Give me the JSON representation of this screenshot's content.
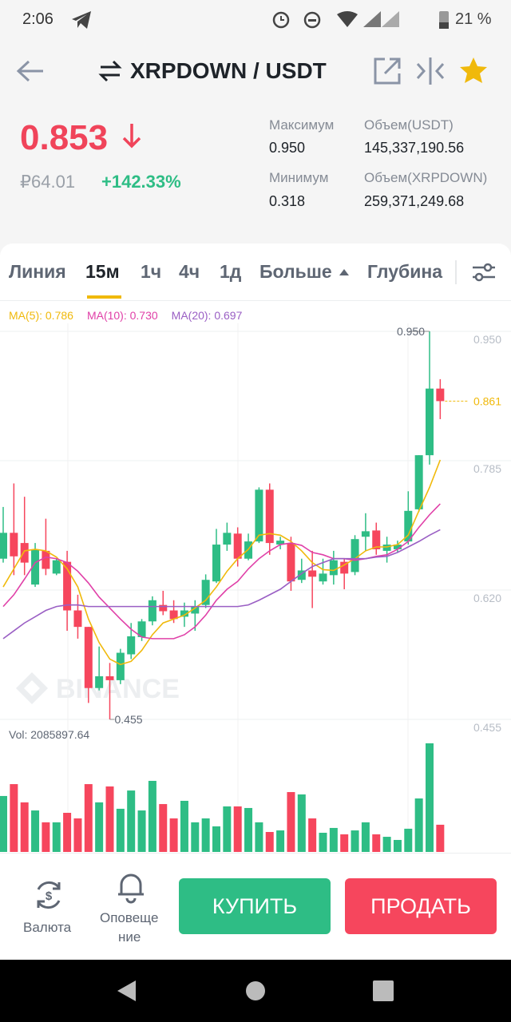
{
  "status_bar": {
    "time": "2:06",
    "battery": "21 %"
  },
  "header": {
    "pair": "XRPDOWN / USDT"
  },
  "ticker": {
    "price": "0.853",
    "fiat": "₽64.01",
    "change": "+142.33%",
    "stats": [
      {
        "label": "Максимум",
        "value": "0.950"
      },
      {
        "label": "Объем(USDT)",
        "value": "145,337,190.56"
      },
      {
        "label": "Минимум",
        "value": "0.318"
      },
      {
        "label": "Объем(XRPDOWN)",
        "value": "259,371,249.68"
      }
    ]
  },
  "tabs": [
    "Линия",
    "15м",
    "1ч",
    "4ч",
    "1д",
    "Больше",
    "Глубина"
  ],
  "active_tab": 1,
  "chart_data": {
    "type": "candlestick",
    "watermark": "BINANCE",
    "up_color": "#2ebd85",
    "down_color": "#f6465d",
    "ylim": [
      0.455,
      0.95
    ],
    "yticks": [
      {
        "value": 0.95,
        "label": "0.950"
      },
      0.785,
      {
        "value": 0.62,
        "label": "0.620"
      },
      {
        "value": 0.455,
        "label": "0.455"
      }
    ],
    "open": [
      0.66,
      0.693,
      0.68,
      0.627,
      0.67,
      0.641,
      0.656,
      0.594,
      0.573,
      0.495,
      0.51,
      0.505,
      0.538,
      0.56,
      0.58,
      0.601,
      0.594,
      0.586,
      0.59,
      0.601,
      0.631,
      0.678,
      0.692,
      0.66,
      0.682,
      0.748,
      0.678,
      0.68,
      0.633,
      0.645,
      0.631,
      0.639,
      0.656,
      0.643,
      0.688,
      0.696,
      0.67,
      0.672,
      0.682,
      0.723,
      0.792,
      0.877
    ],
    "high": [
      0.726,
      0.756,
      0.739,
      0.68,
      0.711,
      0.66,
      0.67,
      0.614,
      0.573,
      0.548,
      0.527,
      0.545,
      0.578,
      0.583,
      0.612,
      0.619,
      0.607,
      0.604,
      0.607,
      0.64,
      0.698,
      0.706,
      0.7,
      0.692,
      0.751,
      0.756,
      0.688,
      0.688,
      0.66,
      0.67,
      0.66,
      0.67,
      0.66,
      0.69,
      0.718,
      0.706,
      0.688,
      0.683,
      0.746,
      0.792,
      0.95,
      0.889
    ],
    "low": [
      0.655,
      0.639,
      0.639,
      0.624,
      0.639,
      0.639,
      0.568,
      0.558,
      0.476,
      0.492,
      0.455,
      0.5,
      0.532,
      0.555,
      0.575,
      0.588,
      0.578,
      0.573,
      0.568,
      0.597,
      0.629,
      0.67,
      0.65,
      0.658,
      0.68,
      0.665,
      0.672,
      0.619,
      0.629,
      0.597,
      0.627,
      0.627,
      0.621,
      0.639,
      0.67,
      0.665,
      0.655,
      0.668,
      0.678,
      0.72,
      0.78,
      0.838
    ],
    "close": [
      0.693,
      0.663,
      0.655,
      0.672,
      0.647,
      0.658,
      0.594,
      0.573,
      0.495,
      0.51,
      0.505,
      0.54,
      0.561,
      0.58,
      0.607,
      0.593,
      0.583,
      0.594,
      0.599,
      0.633,
      0.678,
      0.693,
      0.66,
      0.682,
      0.748,
      0.68,
      0.683,
      0.631,
      0.645,
      0.637,
      0.641,
      0.658,
      0.641,
      0.685,
      0.695,
      0.672,
      0.678,
      0.678,
      0.721,
      0.792,
      0.877,
      0.861
    ],
    "series": [
      {
        "name": "MA(5): 0.786",
        "color": "#f0b90b",
        "values": [
          0.624,
          0.647,
          0.67,
          0.672,
          0.67,
          0.662,
          0.647,
          0.624,
          0.583,
          0.553,
          0.532,
          0.525,
          0.529,
          0.543,
          0.563,
          0.578,
          0.583,
          0.588,
          0.597,
          0.607,
          0.624,
          0.644,
          0.66,
          0.672,
          0.69,
          0.692,
          0.69,
          0.682,
          0.67,
          0.655,
          0.646,
          0.645,
          0.652,
          0.66,
          0.67,
          0.675,
          0.675,
          0.678,
          0.69,
          0.721,
          0.751,
          0.786
        ]
      },
      {
        "name": "MA(10): 0.730",
        "color": "#e040a8",
        "values": [
          0.599,
          0.614,
          0.634,
          0.655,
          0.662,
          0.66,
          0.655,
          0.644,
          0.629,
          0.611,
          0.597,
          0.583,
          0.57,
          0.56,
          0.558,
          0.558,
          0.558,
          0.563,
          0.573,
          0.588,
          0.607,
          0.621,
          0.631,
          0.647,
          0.66,
          0.67,
          0.678,
          0.68,
          0.677,
          0.668,
          0.665,
          0.66,
          0.66,
          0.658,
          0.66,
          0.663,
          0.665,
          0.672,
          0.682,
          0.7,
          0.716,
          0.73
        ]
      },
      {
        "name": "MA(20): 0.697",
        "color": "#9a5fc4",
        "values": [
          0.558,
          0.568,
          0.578,
          0.586,
          0.594,
          0.599,
          0.601,
          0.601,
          0.599,
          0.599,
          0.599,
          0.599,
          0.599,
          0.599,
          0.599,
          0.599,
          0.599,
          0.599,
          0.599,
          0.599,
          0.599,
          0.599,
          0.599,
          0.601,
          0.607,
          0.614,
          0.621,
          0.631,
          0.641,
          0.65,
          0.655,
          0.66,
          0.66,
          0.66,
          0.66,
          0.662,
          0.663,
          0.668,
          0.675,
          0.682,
          0.69,
          0.697
        ]
      }
    ],
    "high_label": {
      "value": 0.95,
      "label": "0.950"
    },
    "low_label": {
      "value": 0.455,
      "label": "0.455"
    },
    "last_price": {
      "value": 0.861,
      "label": "0.861"
    },
    "volume": {
      "label": "Vol: 2085897.64",
      "ylim": [
        0,
        9000000
      ],
      "values": [
        4290000,
        5200000,
        3800000,
        3180000,
        2270000,
        2270000,
        3000000,
        2570000,
        5200000,
        3800000,
        5020000,
        3310000,
        4710000,
        3180000,
        5450000,
        3670000,
        2570000,
        3920000,
        2270000,
        2570000,
        1960000,
        3490000,
        3490000,
        3370000,
        2270000,
        1530000,
        1650000,
        4590000,
        4410000,
        2570000,
        1470000,
        1840000,
        1350000,
        1650000,
        2270000,
        1350000,
        1160000,
        920000,
        1780000,
        4100000,
        8330000,
        2085897.64
      ]
    }
  },
  "bottom_bar": {
    "currency": "Валюта",
    "alerts": [
      "Оповеще",
      "ние"
    ],
    "buy": "КУПИТЬ",
    "sell": "ПРОДАТЬ"
  }
}
